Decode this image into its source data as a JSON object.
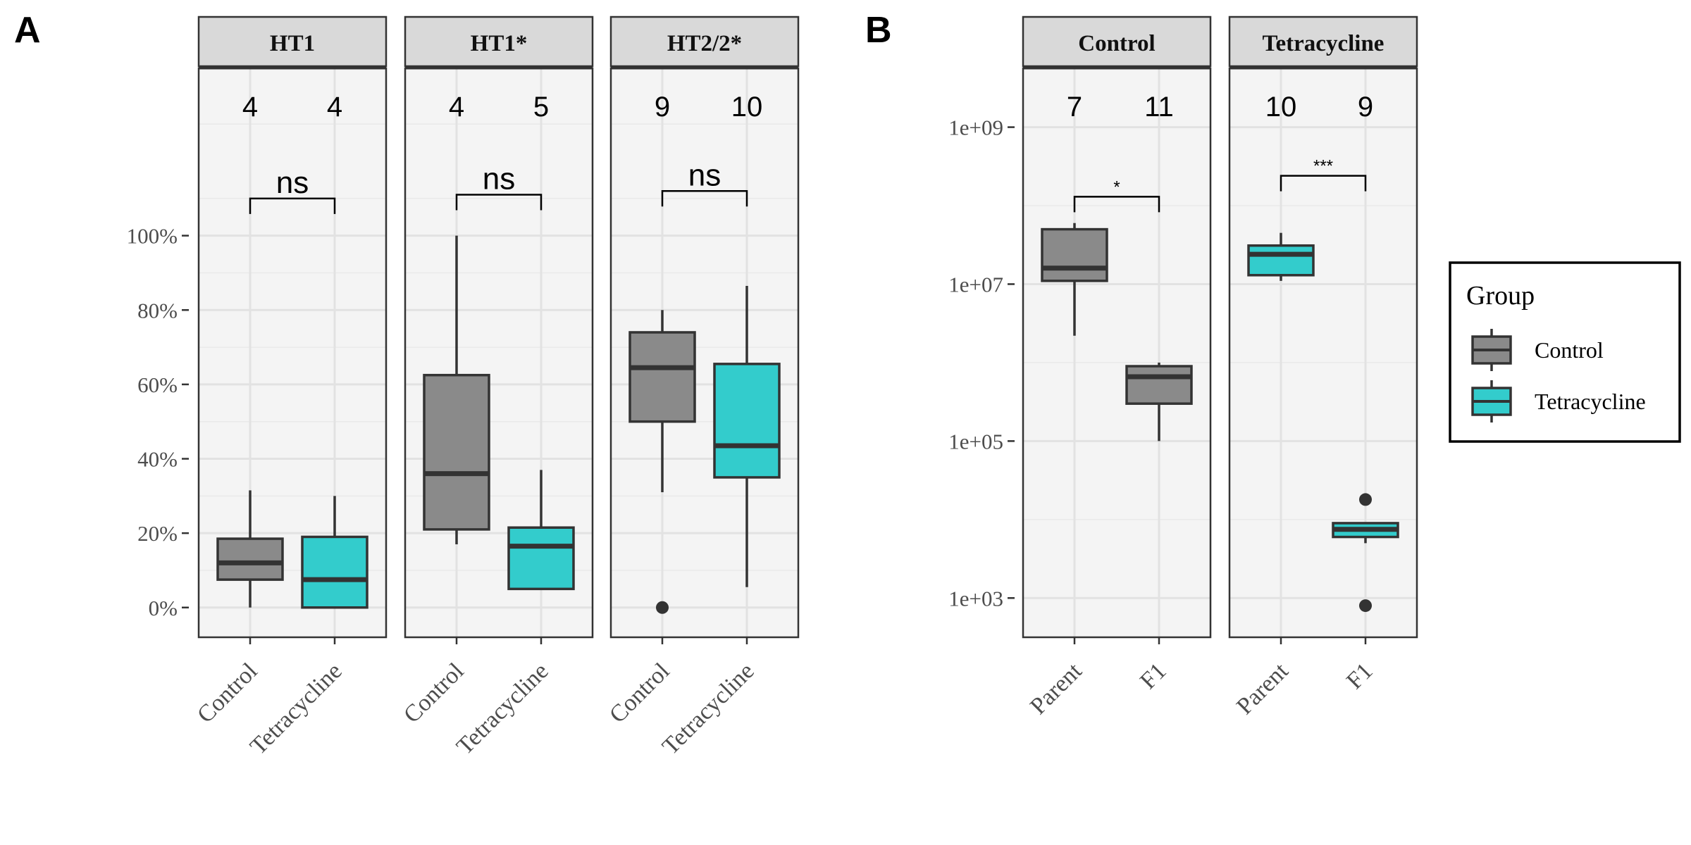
{
  "colors": {
    "control": "#8a8a8a",
    "tetracycline": "#33cccc",
    "panel_bg": "#f4f4f4",
    "strip_bg": "#d9d9d9",
    "line": "#333333"
  },
  "legend": {
    "title": "Group",
    "items": [
      {
        "label": "Control",
        "color": "#8a8a8a"
      },
      {
        "label": "Tetracycline",
        "color": "#33cccc"
      }
    ]
  },
  "chart_data": [
    {
      "panel_label": "A",
      "type": "boxplot",
      "y_scale": "linear",
      "ylim": [
        -0.08,
        1.45
      ],
      "y_ticks": [
        0,
        0.2,
        0.4,
        0.6,
        0.8,
        1.0
      ],
      "y_tick_labels": [
        "0%",
        "20%",
        "40%",
        "60%",
        "80%",
        "100%"
      ],
      "facets": [
        {
          "title": "HT1",
          "categories": [
            "Control",
            "Tetracycline"
          ],
          "boxes": [
            {
              "group": "Control",
              "n": "4",
              "min": 0.0,
              "q1": 0.075,
              "median": 0.12,
              "q3": 0.185,
              "max": 0.315,
              "outliers": []
            },
            {
              "group": "Tetracycline",
              "n": "4",
              "min": 0.0,
              "q1": 0.0,
              "median": 0.075,
              "q3": 0.19,
              "max": 0.3,
              "outliers": []
            }
          ],
          "significance": {
            "label": "ns",
            "y": 1.1
          }
        },
        {
          "title": "HT1*",
          "categories": [
            "Control",
            "Tetracycline"
          ],
          "boxes": [
            {
              "group": "Control",
              "n": "4",
              "min": 0.17,
              "q1": 0.21,
              "median": 0.36,
              "q3": 0.625,
              "max": 1.0,
              "outliers": []
            },
            {
              "group": "Tetracycline",
              "n": "5",
              "min": 0.05,
              "q1": 0.05,
              "median": 0.165,
              "q3": 0.215,
              "max": 0.37,
              "outliers": []
            }
          ],
          "significance": {
            "label": "ns",
            "y": 1.11
          }
        },
        {
          "title": "HT2/2*",
          "categories": [
            "Control",
            "Tetracycline"
          ],
          "boxes": [
            {
              "group": "Control",
              "n": "9",
              "min": 0.31,
              "q1": 0.5,
              "median": 0.645,
              "q3": 0.74,
              "max": 0.8,
              "outliers": [
                0.0
              ]
            },
            {
              "group": "Tetracycline",
              "n": "10",
              "min": 0.055,
              "q1": 0.35,
              "median": 0.435,
              "q3": 0.655,
              "max": 0.865,
              "outliers": []
            }
          ],
          "significance": {
            "label": "ns",
            "y": 1.12
          }
        }
      ]
    },
    {
      "panel_label": "B",
      "type": "boxplot",
      "y_scale": "log10",
      "ylim_log10": [
        2.5,
        9.75
      ],
      "y_ticks_log10": [
        3,
        5,
        7,
        9
      ],
      "y_tick_labels": [
        "1e+03",
        "1e+05",
        "1e+07",
        "1e+09"
      ],
      "facets": [
        {
          "title": "Control",
          "categories": [
            "Parent",
            "F1"
          ],
          "group": "Control",
          "boxes": [
            {
              "category": "Parent",
              "n": "7",
              "min": 2200000,
              "q1": 11000000,
              "median": 16000000,
              "q3": 50000000,
              "max": 60000000,
              "outliers": []
            },
            {
              "category": "F1",
              "n": "11",
              "min": 100000,
              "q1": 300000,
              "median": 660000,
              "q3": 900000,
              "max": 1000000,
              "outliers": []
            }
          ],
          "significance": {
            "label": "*",
            "y": 130000000
          }
        },
        {
          "title": "Tetracycline",
          "categories": [
            "Parent",
            "F1"
          ],
          "group": "Tetracycline",
          "boxes": [
            {
              "category": "Parent",
              "n": "10",
              "min": 11000000,
              "q1": 13000000,
              "median": 24000000,
              "q3": 31000000,
              "max": 45000000,
              "outliers": []
            },
            {
              "category": "F1",
              "n": "9",
              "min": 5000,
              "q1": 6000,
              "median": 7500,
              "q3": 9000,
              "max": 9000,
              "outliers": [
                18000,
                800
              ]
            }
          ],
          "significance": {
            "label": "***",
            "y": 240000000
          }
        }
      ]
    }
  ]
}
